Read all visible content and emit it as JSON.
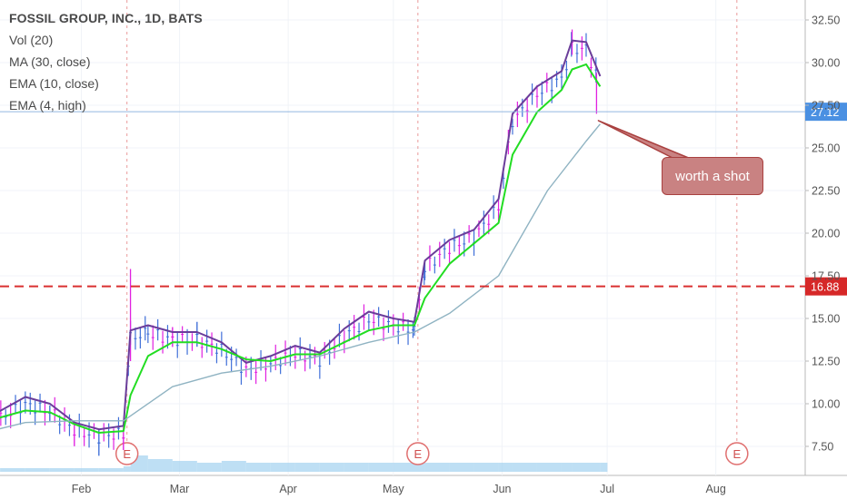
{
  "legend": {
    "title": "FOSSIL GROUP, INC., 1D, BATS",
    "vol": "Vol (20)",
    "ma": "MA (30, close)",
    "ema10": "EMA (10, close)",
    "ema4": "EMA (4, high)"
  },
  "annotation": {
    "text": "worth a shot"
  },
  "colors": {
    "ema4": "#6a3d9a",
    "ema10": "#22dd22",
    "ma30": "#8fb3c2",
    "bar_up": "#3f6fd8",
    "bar_down": "#e020e0",
    "support": "#d93030",
    "price_line": "#93b7e0",
    "earnings": "#e07070",
    "volume": "#a8d4f0"
  },
  "chart_data": {
    "type": "line",
    "title": "FOSSIL GROUP, INC., 1D, BATS",
    "x_labels": [
      "Feb",
      "Mar",
      "Apr",
      "May",
      "Jun",
      "Jul",
      "Aug"
    ],
    "y_ticks": [
      "32.50",
      "30.00",
      "27.50",
      "25.00",
      "22.50",
      "20.00",
      "17.50",
      "15.00",
      "12.50",
      "10.00",
      "7.50"
    ],
    "ylim": [
      6.0,
      33.5
    ],
    "current_price": "27.12",
    "support_level": "16.88",
    "earnings_marker": "E",
    "earnings_dates": [
      "2018-02-14",
      "2018-05-08",
      "2018-08-07"
    ],
    "series": [
      {
        "name": "EMA (4, high)",
        "x": [
          "2018-01-02",
          "2018-01-09",
          "2018-01-16",
          "2018-01-23",
          "2018-01-30",
          "2018-02-06",
          "2018-02-13",
          "2018-02-15",
          "2018-02-20",
          "2018-02-27",
          "2018-03-06",
          "2018-03-13",
          "2018-03-20",
          "2018-03-27",
          "2018-04-03",
          "2018-04-10",
          "2018-04-17",
          "2018-04-24",
          "2018-05-01",
          "2018-05-07",
          "2018-05-10",
          "2018-05-17",
          "2018-05-24",
          "2018-05-31",
          "2018-06-04",
          "2018-06-11",
          "2018-06-18",
          "2018-06-21",
          "2018-06-25",
          "2018-06-29"
        ],
        "y": [
          9.0,
          9.6,
          10.4,
          10.0,
          8.9,
          8.5,
          8.7,
          14.3,
          14.6,
          14.2,
          14.2,
          13.6,
          12.4,
          12.8,
          13.4,
          13.0,
          14.4,
          15.4,
          15.0,
          14.8,
          18.4,
          19.6,
          20.2,
          22.0,
          27.0,
          28.6,
          29.5,
          31.3,
          31.2,
          29.2
        ]
      },
      {
        "name": "EMA (10, close)",
        "x": [
          "2018-01-02",
          "2018-01-09",
          "2018-01-16",
          "2018-01-23",
          "2018-01-30",
          "2018-02-06",
          "2018-02-13",
          "2018-02-15",
          "2018-02-20",
          "2018-02-27",
          "2018-03-06",
          "2018-03-13",
          "2018-03-20",
          "2018-03-27",
          "2018-04-03",
          "2018-04-10",
          "2018-04-17",
          "2018-04-24",
          "2018-05-01",
          "2018-05-07",
          "2018-05-10",
          "2018-05-17",
          "2018-05-24",
          "2018-05-31",
          "2018-06-04",
          "2018-06-11",
          "2018-06-18",
          "2018-06-21",
          "2018-06-25",
          "2018-06-29"
        ],
        "y": [
          8.6,
          9.2,
          9.6,
          9.5,
          8.8,
          8.3,
          8.4,
          10.5,
          12.8,
          13.6,
          13.6,
          13.2,
          12.6,
          12.5,
          12.9,
          12.9,
          13.6,
          14.3,
          14.6,
          14.6,
          16.2,
          18.2,
          19.4,
          20.6,
          24.6,
          27.1,
          28.4,
          29.6,
          29.9,
          28.6
        ]
      },
      {
        "name": "MA (30, close)",
        "x": [
          "2018-01-02",
          "2018-01-16",
          "2018-01-30",
          "2018-02-13",
          "2018-02-27",
          "2018-03-13",
          "2018-03-27",
          "2018-04-10",
          "2018-04-24",
          "2018-05-07",
          "2018-05-17",
          "2018-05-31",
          "2018-06-14",
          "2018-06-25",
          "2018-06-29"
        ],
        "y": [
          8.2,
          8.9,
          9.0,
          9.0,
          11.0,
          11.8,
          12.2,
          12.8,
          13.6,
          14.2,
          15.3,
          17.5,
          22.5,
          25.4,
          26.4
        ]
      }
    ],
    "volume": [
      2,
      2,
      2,
      2,
      2,
      2,
      3,
      9,
      7,
      6,
      5,
      6,
      5,
      5,
      5,
      5,
      5,
      5,
      5,
      5,
      5,
      5,
      5,
      5,
      5,
      5,
      5,
      5,
      5,
      5
    ],
    "grid": true,
    "legend_position": "top-left"
  }
}
